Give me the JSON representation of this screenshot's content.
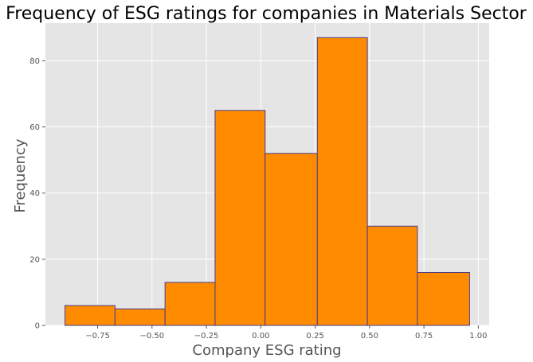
{
  "chart_data": {
    "type": "bar",
    "title": "Frequency of ESG ratings for companies in Materials Sector",
    "xlabel": "Company ESG rating",
    "ylabel": "Frequency",
    "bins": [
      {
        "start": -0.9,
        "end": -0.67,
        "count": 6
      },
      {
        "start": -0.67,
        "end": -0.44,
        "count": 5
      },
      {
        "start": -0.44,
        "end": -0.21,
        "count": 13
      },
      {
        "start": -0.21,
        "end": 0.02,
        "count": 65
      },
      {
        "start": 0.02,
        "end": 0.26,
        "count": 52
      },
      {
        "start": 0.26,
        "end": 0.49,
        "count": 87
      },
      {
        "start": 0.49,
        "end": 0.72,
        "count": 30
      },
      {
        "start": 0.72,
        "end": 0.96,
        "count": 16
      }
    ],
    "xticks": [
      -0.75,
      -0.5,
      -0.25,
      0.0,
      0.25,
      0.5,
      0.75,
      1.0
    ],
    "xtick_labels": [
      "−0.75",
      "−0.50",
      "−0.25",
      "0.00",
      "0.25",
      "0.50",
      "0.75",
      "1.00"
    ],
    "yticks": [
      0,
      20,
      40,
      60,
      80
    ],
    "ytick_labels": [
      "0",
      "20",
      "40",
      "60",
      "80"
    ],
    "xlim": [
      -0.99,
      1.05
    ],
    "ylim": [
      0,
      91.4
    ],
    "grid": true,
    "colors": {
      "bar_fill": "#ff8c00",
      "bar_edge": "#4a3c8c",
      "plot_bg": "#e5e5e5",
      "grid": "#ffffff"
    }
  }
}
